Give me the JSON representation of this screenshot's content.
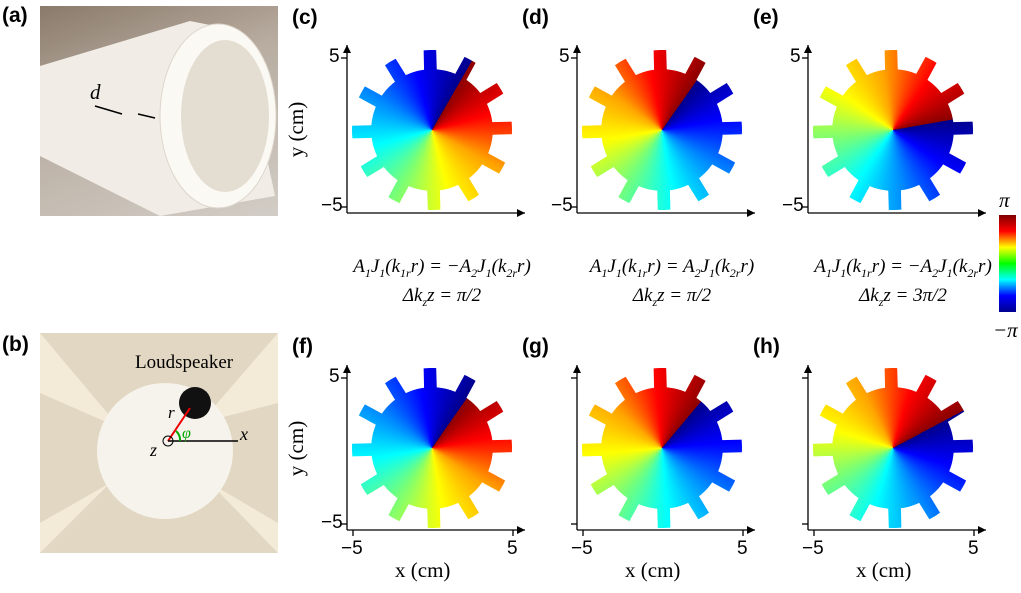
{
  "photos": {
    "a": {
      "label": "(a)",
      "d_label": "d"
    },
    "b": {
      "label": "(b)",
      "speaker": "Loudspeaker",
      "r": "r",
      "phi": "φ",
      "z": "z",
      "x": "x"
    }
  },
  "field_maps": [
    {
      "label": "(c)",
      "y_axis_label": "y (cm)",
      "y_ticks": [
        "5",
        "−5"
      ],
      "equation": [
        [
          {
            "text": "A"
          },
          {
            "sub": "1"
          },
          {
            "text": "J"
          },
          {
            "sub": "1"
          },
          {
            "text": "(k"
          },
          {
            "sub": "1r"
          },
          {
            "text": "r) = −A"
          },
          {
            "sub": "2"
          },
          {
            "text": "J"
          },
          {
            "sub": "1"
          },
          {
            "text": "(k"
          },
          {
            "sub": "2r"
          },
          {
            "text": "r)"
          }
        ],
        [
          {
            "text": "Δk"
          },
          {
            "sub": "z"
          },
          {
            "text": "z = π/2"
          }
        ]
      ]
    },
    {
      "label": "(d)",
      "y_ticks": [
        "5",
        "−5"
      ],
      "equation": [
        [
          {
            "text": "A"
          },
          {
            "sub": "1"
          },
          {
            "text": "J"
          },
          {
            "sub": "1"
          },
          {
            "text": "(k"
          },
          {
            "sub": "1r"
          },
          {
            "text": "r) = A"
          },
          {
            "sub": "2"
          },
          {
            "text": "J"
          },
          {
            "sub": "1"
          },
          {
            "text": "(k"
          },
          {
            "sub": "2r"
          },
          {
            "text": "r)"
          }
        ],
        [
          {
            "text": "Δk"
          },
          {
            "sub": "z"
          },
          {
            "text": "z = π/2"
          }
        ]
      ]
    },
    {
      "label": "(e)",
      "y_ticks": [
        "5",
        "−5"
      ],
      "equation": [
        [
          {
            "text": "A"
          },
          {
            "sub": "1"
          },
          {
            "text": "J"
          },
          {
            "sub": "1"
          },
          {
            "text": "(k"
          },
          {
            "sub": "1r"
          },
          {
            "text": "r) = −A"
          },
          {
            "sub": "2"
          },
          {
            "text": "J"
          },
          {
            "sub": "1"
          },
          {
            "text": "(k"
          },
          {
            "sub": "2r"
          },
          {
            "text": "r)"
          }
        ],
        [
          {
            "text": "Δk"
          },
          {
            "sub": "z"
          },
          {
            "text": "z = 3π/2"
          }
        ]
      ]
    },
    {
      "label": "(f)",
      "y_axis_label": "y (cm)",
      "y_ticks": [
        "5",
        "−5"
      ],
      "x_ticks": [
        "−5",
        "5"
      ],
      "x_axis_label": "x (cm)"
    },
    {
      "label": "(g)",
      "x_ticks": [
        "−5",
        "5"
      ],
      "x_axis_label": "x (cm)"
    },
    {
      "label": "(h)",
      "x_ticks": [
        "−5",
        "5"
      ],
      "x_axis_label": "x (cm)"
    }
  ],
  "colorbar": {
    "max": "π",
    "min": "−π"
  }
}
